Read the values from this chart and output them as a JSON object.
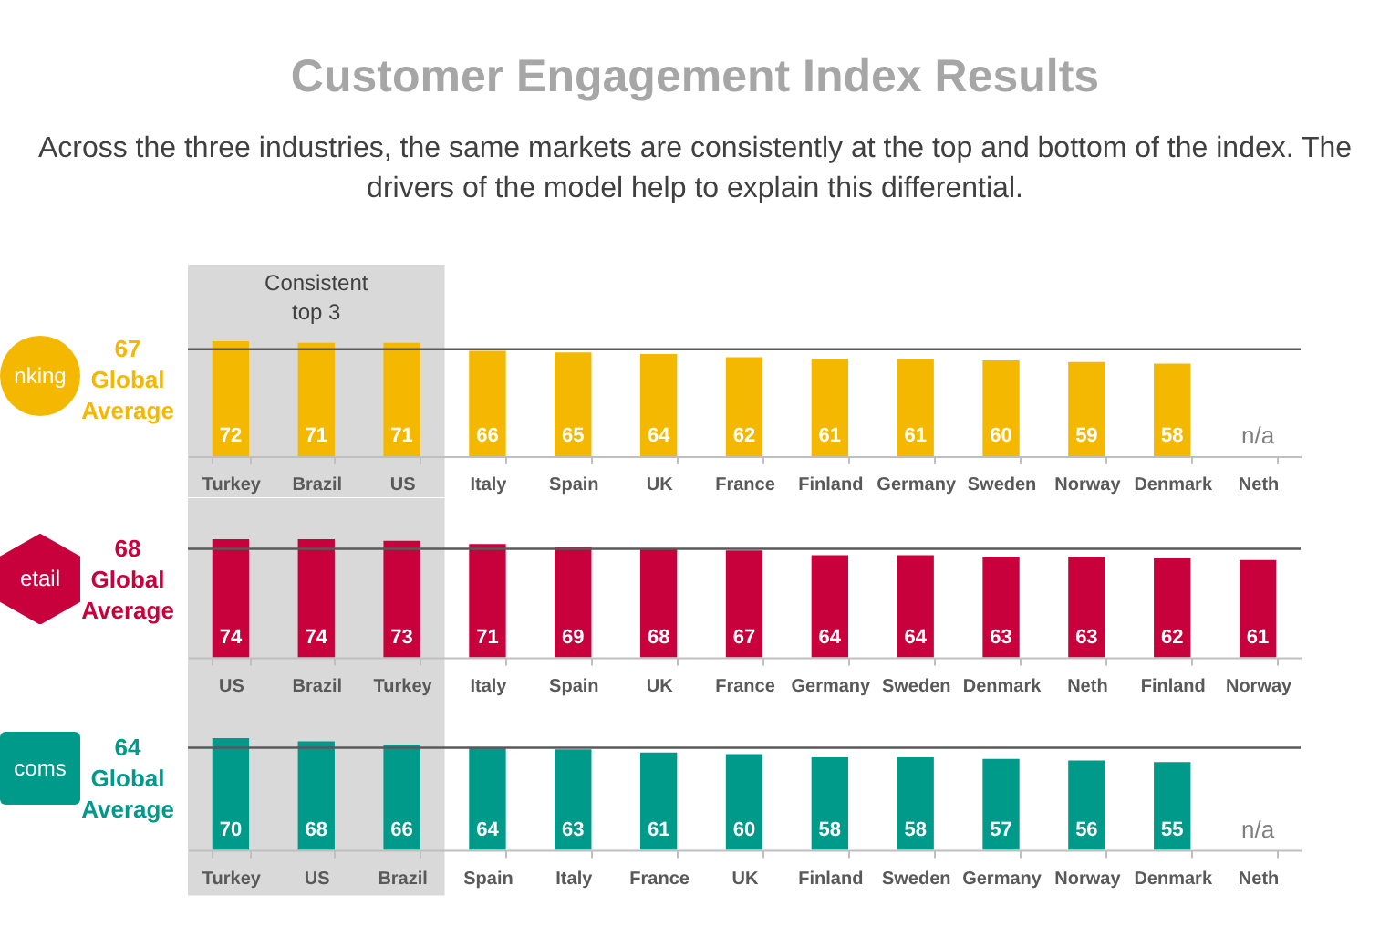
{
  "chart_data": [
    {
      "type": "bar",
      "title": "Customer Engagement Index Results",
      "subtitle": "Across the three industries, the same markets are consistently at the top and bottom of the index.  The drivers of the model help to explain this differential.",
      "ylabel": "nking",
      "tick_labels": "x",
      "categories": [
        "Turkey",
        "Brazil",
        "US",
        "Italy",
        "Spain",
        "UK",
        "France",
        "Finland",
        "Germany",
        "Sweden",
        "Norway",
        "Denmark",
        "Neth"
      ],
      "series": [
        {
          "color": "#f5b800",
          "values": [
            72,
            71,
            71,
            66,
            65,
            64,
            62,
            61,
            61,
            60,
            59,
            58,
            null
          ]
        }
      ],
      "data_labels": true,
      "annotations": [
        "n/a"
      ],
      "ref_lines": [
        {
          "axis": "y",
          "value": 67,
          "label": "67 Global Average",
          "color": "#595959"
        }
      ],
      "bands": [
        {
          "axis": "x",
          "from": "Turkey",
          "to": "US",
          "label": "Consistent top 3",
          "color": "#d9d9d9"
        }
      ]
    },
    {
      "type": "bar",
      "ylabel": "etail",
      "tick_labels": "x",
      "categories": [
        "US",
        "Brazil",
        "Turkey",
        "Italy",
        "Spain",
        "UK",
        "France",
        "Germany",
        "Sweden",
        "Denmark",
        "Neth",
        "Finland",
        "Norway"
      ],
      "series": [
        {
          "color": "#c8003c",
          "values": [
            74,
            74,
            73,
            71,
            69,
            68,
            67,
            64,
            64,
            63,
            63,
            62,
            61
          ]
        }
      ],
      "data_labels": true,
      "ref_lines": [
        {
          "axis": "y",
          "value": 68,
          "label": "68 Global Average",
          "color": "#595959"
        }
      ],
      "bands": [
        {
          "axis": "x",
          "from": "US",
          "to": "Turkey",
          "color": "#d9d9d9"
        }
      ]
    },
    {
      "type": "bar",
      "ylabel": "coms",
      "tick_labels": "x",
      "categories": [
        "Turkey",
        "US",
        "Brazil",
        "Spain",
        "Italy",
        "France",
        "UK",
        "Finland",
        "Sweden",
        "Germany",
        "Norway",
        "Denmark",
        "Neth"
      ],
      "series": [
        {
          "color": "#009a8a",
          "values": [
            70,
            68,
            66,
            64,
            63,
            61,
            60,
            58,
            58,
            57,
            56,
            55,
            null
          ]
        }
      ],
      "data_labels": true,
      "annotations": [
        "n/a"
      ],
      "ref_lines": [
        {
          "axis": "y",
          "value": 64,
          "label": "64 Global Average",
          "color": "#595959"
        }
      ],
      "bands": [
        {
          "axis": "x",
          "from": "Turkey",
          "to": "Brazil",
          "color": "#d9d9d9"
        }
      ]
    }
  ]
}
